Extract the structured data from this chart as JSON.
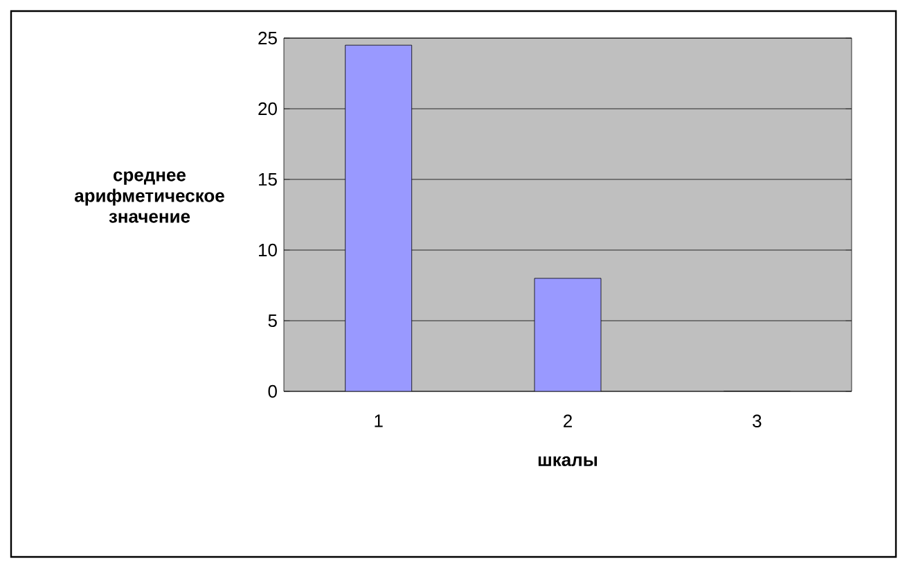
{
  "chart_data": {
    "type": "bar",
    "xlabel": "шкалы",
    "ylabel": "среднее арифметическое значение",
    "categories": [
      "1",
      "2",
      "3"
    ],
    "values": [
      24.5,
      8,
      0
    ],
    "color": "#9999ff",
    "ylim": [
      0,
      25
    ],
    "yticks": [
      0,
      5,
      10,
      15,
      20,
      25
    ],
    "grid": "y"
  }
}
